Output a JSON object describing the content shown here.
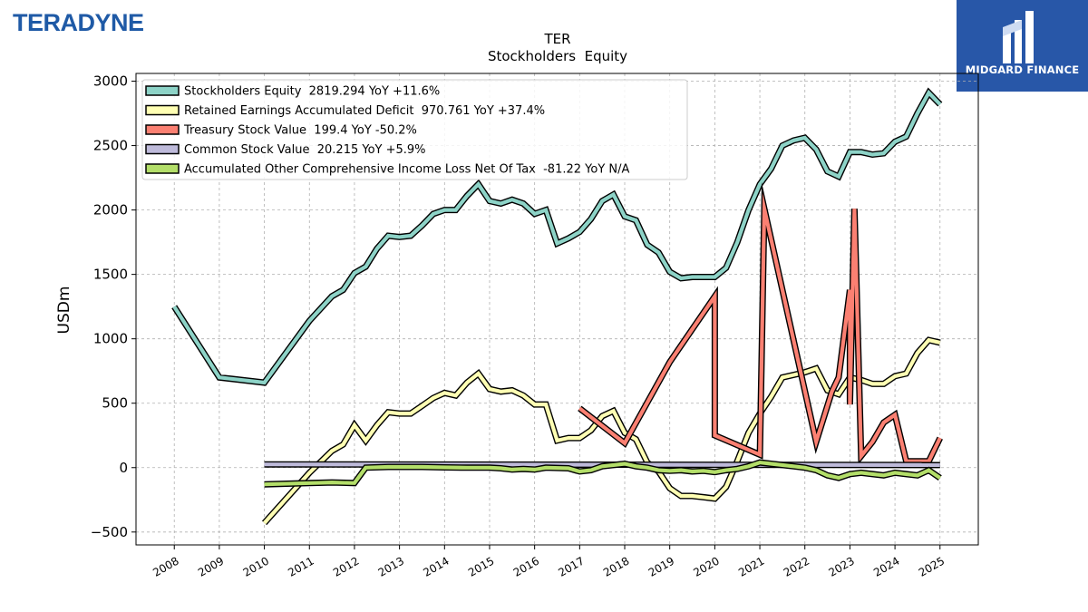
{
  "branding": {
    "company_logo": "TERADYNE",
    "publisher": "MIDGARD FINANCE",
    "publisher_color": "#2857a8",
    "logo_color": "#1f5aa6"
  },
  "chart_data": {
    "type": "line",
    "title": "TER",
    "subtitle": "Stockholders  Equity",
    "ylabel": "USDm",
    "xlabel": "",
    "ylim": [
      -600,
      3060
    ],
    "xlim": [
      2007.15,
      2025.85
    ],
    "yticks": [
      -500,
      0,
      500,
      1000,
      1500,
      2000,
      2500,
      3000
    ],
    "ytick_labels": [
      "−500",
      "0",
      "500",
      "1000",
      "1500",
      "2000",
      "2500",
      "3000"
    ],
    "xticks": [
      2008,
      2009,
      2010,
      2011,
      2012,
      2013,
      2014,
      2015,
      2016,
      2017,
      2018,
      2019,
      2020,
      2021,
      2022,
      2023,
      2024,
      2025
    ],
    "xtick_labels": [
      "2008",
      "2009",
      "2010",
      "2011",
      "2012",
      "2013",
      "2014",
      "2015",
      "2016",
      "2017",
      "2018",
      "2019",
      "2020",
      "2021",
      "2022",
      "2023",
      "2024",
      "2025"
    ],
    "grid": true,
    "legend_position": "top-left",
    "series": [
      {
        "name": "Stockholders Equity",
        "legend": "Stockholders Equity  2819.294 YoY +11.6%",
        "color": "#8dd3c7",
        "points": [
          [
            2008.0,
            1250
          ],
          [
            2009.0,
            700
          ],
          [
            2010.0,
            660
          ],
          [
            2011.0,
            1140
          ],
          [
            2011.5,
            1330
          ],
          [
            2011.75,
            1380
          ],
          [
            2012.0,
            1510
          ],
          [
            2012.25,
            1560
          ],
          [
            2012.5,
            1700
          ],
          [
            2012.75,
            1800
          ],
          [
            2013.0,
            1790
          ],
          [
            2013.25,
            1800
          ],
          [
            2013.5,
            1880
          ],
          [
            2013.75,
            1970
          ],
          [
            2014.0,
            2000
          ],
          [
            2014.25,
            2000
          ],
          [
            2014.5,
            2110
          ],
          [
            2014.75,
            2200
          ],
          [
            2015.0,
            2070
          ],
          [
            2015.25,
            2050
          ],
          [
            2015.5,
            2080
          ],
          [
            2015.75,
            2050
          ],
          [
            2016.0,
            1970
          ],
          [
            2016.25,
            2000
          ],
          [
            2016.5,
            1740
          ],
          [
            2016.75,
            1780
          ],
          [
            2017.0,
            1830
          ],
          [
            2017.25,
            1930
          ],
          [
            2017.5,
            2070
          ],
          [
            2017.75,
            2120
          ],
          [
            2018.0,
            1950
          ],
          [
            2018.25,
            1920
          ],
          [
            2018.5,
            1730
          ],
          [
            2018.75,
            1670
          ],
          [
            2019.0,
            1520
          ],
          [
            2019.25,
            1470
          ],
          [
            2019.5,
            1480
          ],
          [
            2019.75,
            1480
          ],
          [
            2020.0,
            1480
          ],
          [
            2020.25,
            1550
          ],
          [
            2020.5,
            1750
          ],
          [
            2020.75,
            2000
          ],
          [
            2021.0,
            2200
          ],
          [
            2021.25,
            2320
          ],
          [
            2021.5,
            2500
          ],
          [
            2021.75,
            2540
          ],
          [
            2022.0,
            2560
          ],
          [
            2022.25,
            2470
          ],
          [
            2022.5,
            2300
          ],
          [
            2022.75,
            2260
          ],
          [
            2023.0,
            2450
          ],
          [
            2023.25,
            2450
          ],
          [
            2023.5,
            2430
          ],
          [
            2023.75,
            2440
          ],
          [
            2024.0,
            2530
          ],
          [
            2024.25,
            2570
          ],
          [
            2024.5,
            2750
          ],
          [
            2024.75,
            2910
          ],
          [
            2025.0,
            2820
          ]
        ]
      },
      {
        "name": "Retained Earnings Accumulated Deficit",
        "legend": "Retained Earnings Accumulated Deficit  970.761 YoY +37.4%",
        "color": "#ffffb3",
        "points": [
          [
            2010.0,
            -430
          ],
          [
            2011.0,
            -40
          ],
          [
            2011.5,
            130
          ],
          [
            2011.75,
            180
          ],
          [
            2012.0,
            330
          ],
          [
            2012.25,
            210
          ],
          [
            2012.5,
            330
          ],
          [
            2012.75,
            430
          ],
          [
            2013.0,
            420
          ],
          [
            2013.25,
            420
          ],
          [
            2013.5,
            480
          ],
          [
            2013.75,
            540
          ],
          [
            2014.0,
            580
          ],
          [
            2014.25,
            560
          ],
          [
            2014.5,
            660
          ],
          [
            2014.75,
            730
          ],
          [
            2015.0,
            610
          ],
          [
            2015.25,
            590
          ],
          [
            2015.5,
            600
          ],
          [
            2015.75,
            560
          ],
          [
            2016.0,
            490
          ],
          [
            2016.25,
            490
          ],
          [
            2016.5,
            210
          ],
          [
            2016.75,
            230
          ],
          [
            2017.0,
            230
          ],
          [
            2017.25,
            290
          ],
          [
            2017.5,
            400
          ],
          [
            2017.75,
            440
          ],
          [
            2018.0,
            270
          ],
          [
            2018.25,
            220
          ],
          [
            2018.5,
            40
          ],
          [
            2018.75,
            -30
          ],
          [
            2019.0,
            -160
          ],
          [
            2019.25,
            -220
          ],
          [
            2019.5,
            -220
          ],
          [
            2019.75,
            -230
          ],
          [
            2020.0,
            -240
          ],
          [
            2020.25,
            -150
          ],
          [
            2020.5,
            50
          ],
          [
            2020.75,
            270
          ],
          [
            2021.0,
            420
          ],
          [
            2021.25,
            550
          ],
          [
            2021.5,
            700
          ],
          [
            2021.75,
            720
          ],
          [
            2022.0,
            740
          ],
          [
            2022.25,
            770
          ],
          [
            2022.5,
            600
          ],
          [
            2022.75,
            570
          ],
          [
            2023.0,
            700
          ],
          [
            2023.25,
            680
          ],
          [
            2023.5,
            650
          ],
          [
            2023.75,
            650
          ],
          [
            2024.0,
            710
          ],
          [
            2024.25,
            730
          ],
          [
            2024.5,
            890
          ],
          [
            2024.75,
            990
          ],
          [
            2025.0,
            970
          ]
        ]
      },
      {
        "name": "Treasury Stock Value",
        "legend": "Treasury Stock Value  199.4 YoY -50.2%",
        "color": "#fb8072",
        "points": [
          [
            2017.0,
            460
          ],
          [
            2018.0,
            190
          ],
          [
            2019.0,
            820
          ],
          [
            2020.0,
            1330
          ],
          [
            2020.0,
            250
          ],
          [
            2021.0,
            100
          ],
          [
            2021.1,
            2010
          ],
          [
            2022.25,
            200
          ],
          [
            2022.6,
            590
          ],
          [
            2022.75,
            700
          ],
          [
            2023.0,
            1380
          ],
          [
            2023.0,
            490
          ],
          [
            2023.1,
            2010
          ],
          [
            2023.25,
            90
          ],
          [
            2023.5,
            200
          ],
          [
            2023.75,
            350
          ],
          [
            2024.0,
            410
          ],
          [
            2024.25,
            50
          ],
          [
            2024.75,
            50
          ],
          [
            2025.0,
            230
          ]
        ]
      },
      {
        "name": "Common Stock Value",
        "legend": "Common Stock Value  20.215 YoY +5.9%",
        "color": "#bebada",
        "points": [
          [
            2010.0,
            25
          ],
          [
            2025.0,
            20
          ]
        ]
      },
      {
        "name": "Accumulated Other Comprehensive Income Loss Net Of Tax",
        "legend": "Accumulated Other Comprehensive Income Loss Net Of Tax  -81.22 YoY N/A",
        "color": "#b3de69",
        "points": [
          [
            2010.0,
            -130
          ],
          [
            2011.0,
            -120
          ],
          [
            2011.5,
            -115
          ],
          [
            2012.0,
            -120
          ],
          [
            2012.25,
            0
          ],
          [
            2012.75,
            5
          ],
          [
            2013.5,
            5
          ],
          [
            2014.0,
            2
          ],
          [
            2014.5,
            0
          ],
          [
            2015.0,
            0
          ],
          [
            2015.25,
            -5
          ],
          [
            2015.5,
            -15
          ],
          [
            2015.75,
            -10
          ],
          [
            2016.0,
            -15
          ],
          [
            2016.25,
            0
          ],
          [
            2016.75,
            -5
          ],
          [
            2017.0,
            -30
          ],
          [
            2017.25,
            -20
          ],
          [
            2017.5,
            10
          ],
          [
            2017.75,
            20
          ],
          [
            2018.0,
            30
          ],
          [
            2018.25,
            10
          ],
          [
            2018.5,
            0
          ],
          [
            2018.75,
            -20
          ],
          [
            2019.0,
            -25
          ],
          [
            2019.25,
            -20
          ],
          [
            2019.5,
            -30
          ],
          [
            2019.75,
            -25
          ],
          [
            2020.0,
            -35
          ],
          [
            2020.25,
            -20
          ],
          [
            2020.5,
            -10
          ],
          [
            2020.75,
            10
          ],
          [
            2021.0,
            40
          ],
          [
            2021.25,
            30
          ],
          [
            2021.5,
            20
          ],
          [
            2021.75,
            10
          ],
          [
            2022.0,
            0
          ],
          [
            2022.25,
            -20
          ],
          [
            2022.5,
            -60
          ],
          [
            2022.75,
            -80
          ],
          [
            2023.0,
            -50
          ],
          [
            2023.25,
            -40
          ],
          [
            2023.5,
            -50
          ],
          [
            2023.75,
            -60
          ],
          [
            2024.0,
            -40
          ],
          [
            2024.25,
            -50
          ],
          [
            2024.5,
            -60
          ],
          [
            2024.75,
            -20
          ],
          [
            2025.0,
            -80
          ]
        ]
      }
    ]
  }
}
